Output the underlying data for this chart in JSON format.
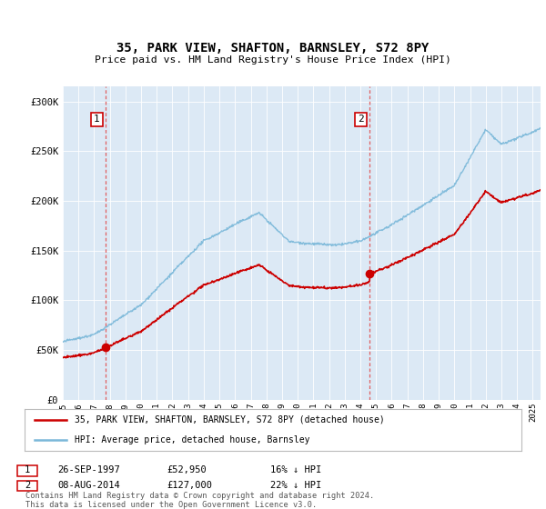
{
  "title1": "35, PARK VIEW, SHAFTON, BARNSLEY, S72 8PY",
  "title2": "Price paid vs. HM Land Registry's House Price Index (HPI)",
  "yticks": [
    0,
    50000,
    100000,
    150000,
    200000,
    250000,
    300000
  ],
  "ytick_labels": [
    "£0",
    "£50K",
    "£100K",
    "£150K",
    "£200K",
    "£250K",
    "£300K"
  ],
  "ylim": [
    0,
    315000
  ],
  "sale1_date_num": 1997.73,
  "sale1_price": 52950,
  "sale1_label": "1",
  "sale1_date_str": "26-SEP-1997",
  "sale1_price_str": "£52,950",
  "sale1_hpi_str": "16% ↓ HPI",
  "sale2_date_num": 2014.58,
  "sale2_price": 127000,
  "sale2_label": "2",
  "sale2_date_str": "08-AUG-2014",
  "sale2_price_str": "£127,000",
  "sale2_hpi_str": "22% ↓ HPI",
  "hpi_color": "#7ab8d9",
  "price_color": "#cc0000",
  "vline_color": "#e06060",
  "bg_color": "#dce9f5",
  "grid_color": "#ffffff",
  "legend_label1": "35, PARK VIEW, SHAFTON, BARNSLEY, S72 8PY (detached house)",
  "legend_label2": "HPI: Average price, detached house, Barnsley",
  "footer": "Contains HM Land Registry data © Crown copyright and database right 2024.\nThis data is licensed under the Open Government Licence v3.0.",
  "xmin": 1995.0,
  "xmax": 2025.5
}
